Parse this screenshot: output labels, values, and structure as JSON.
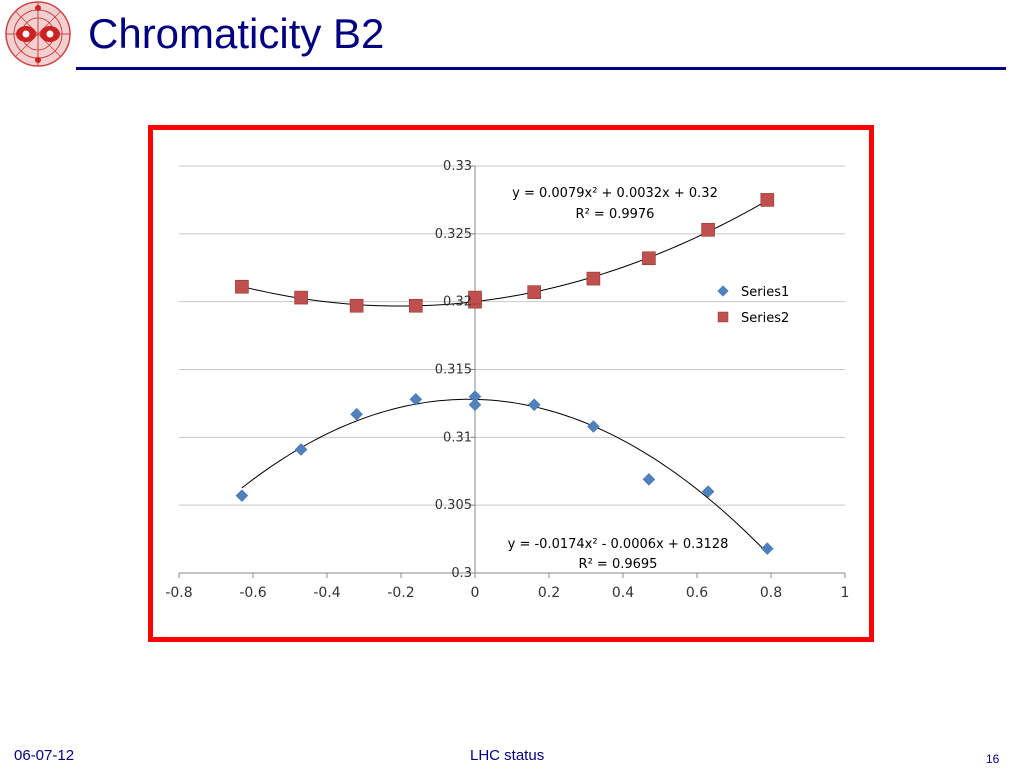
{
  "slide": {
    "title": "Chromaticity B2",
    "footer_date": "06-07-12",
    "footer_center": "LHC status",
    "page_number": "16"
  },
  "chart_data": {
    "type": "scatter",
    "title": "",
    "xlabel": "",
    "ylabel": "",
    "xlim": [
      -0.8,
      1
    ],
    "ylim": [
      0.3,
      0.33
    ],
    "grid": "horizontal",
    "legend_placement": "right",
    "x_ticks": [
      "-0.8",
      "-0.6",
      "-0.4",
      "-0.2",
      "0",
      "0.2",
      "0.4",
      "0.6",
      "0.8",
      "1"
    ],
    "y_ticks": [
      "0.3",
      "0.305",
      "0.31",
      "0.315",
      "0.32",
      "0.325",
      "0.33"
    ],
    "series": [
      {
        "name": "Series1",
        "marker": "diamond",
        "color": "#4f81bd",
        "x": [
          -0.63,
          -0.47,
          -0.32,
          -0.16,
          0,
          0,
          0.16,
          0.32,
          0.47,
          0.63,
          0.79
        ],
        "y": [
          0.3057,
          0.3091,
          0.3117,
          0.3128,
          0.313,
          0.3124,
          0.3124,
          0.3108,
          0.3069,
          0.306,
          0.3018
        ],
        "trendline": {
          "type": "poly2",
          "coefficients": [
            -0.0174,
            -0.0006,
            0.3128
          ],
          "x_range": [
            -0.63,
            0.79
          ],
          "equation": "y = -0.0174x² - 0.0006x + 0.3128",
          "r2": "R² = 0.9695"
        }
      },
      {
        "name": "Series2",
        "marker": "square",
        "color": "#c0504d",
        "x": [
          -0.63,
          -0.47,
          -0.32,
          -0.16,
          0,
          0,
          0.16,
          0.32,
          0.47,
          0.63,
          0.79
        ],
        "y": [
          0.3211,
          0.3203,
          0.3197,
          0.3197,
          0.32,
          0.3203,
          0.3207,
          0.3217,
          0.3232,
          0.3253,
          0.3275
        ],
        "trendline": {
          "type": "poly2",
          "coefficients": [
            0.0079,
            0.0032,
            0.32
          ],
          "x_range": [
            -0.63,
            0.79
          ],
          "equation": "y = 0.0079x² + 0.0032x + 0.32",
          "r2": "R² = 0.9976"
        }
      }
    ]
  }
}
